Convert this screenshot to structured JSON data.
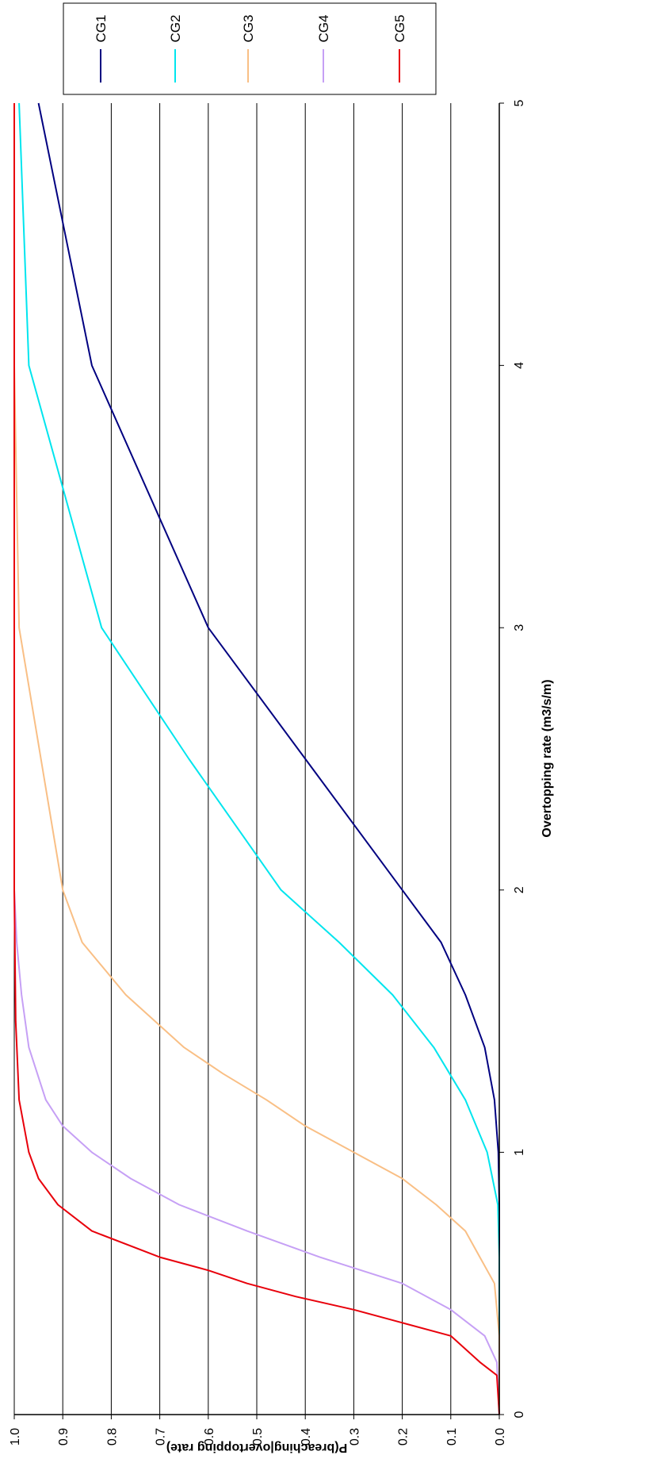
{
  "chart_data": {
    "type": "line",
    "orientation": "rotated 90 degrees clockwise (x axis runs top to bottom)",
    "title": "",
    "xlabel": "Overtopping rate (m3/s/m)",
    "ylabel": "P(breaching|overtopping rate)",
    "xlim": [
      0,
      5
    ],
    "ylim": [
      0,
      1
    ],
    "x_ticks": [
      "0",
      "1",
      "2",
      "3",
      "4",
      "5"
    ],
    "y_ticks": [
      "0.0",
      "0.1",
      "0.2",
      "0.3",
      "0.4",
      "0.5",
      "0.6",
      "0.7",
      "0.8",
      "0.9",
      "1.0"
    ],
    "grid": "horizontal gridlines at every 0.1",
    "legend_position": "top-right",
    "series": [
      {
        "name": "CG1",
        "color": "#000080",
        "points": [
          [
            0,
            0
          ],
          [
            0.8,
            0
          ],
          [
            1.0,
            0.002
          ],
          [
            1.2,
            0.01
          ],
          [
            1.4,
            0.03
          ],
          [
            1.6,
            0.07
          ],
          [
            1.8,
            0.12
          ],
          [
            2.0,
            0.2
          ],
          [
            2.5,
            0.4
          ],
          [
            3.0,
            0.6
          ],
          [
            4.0,
            0.84
          ],
          [
            5.0,
            0.95
          ]
        ]
      },
      {
        "name": "CG2",
        "color": "#00E5EE",
        "points": [
          [
            0,
            0
          ],
          [
            0.6,
            0
          ],
          [
            0.8,
            0.003
          ],
          [
            1.0,
            0.025
          ],
          [
            1.2,
            0.07
          ],
          [
            1.4,
            0.135
          ],
          [
            1.6,
            0.22
          ],
          [
            1.8,
            0.33
          ],
          [
            2.0,
            0.45
          ],
          [
            2.5,
            0.64
          ],
          [
            3.0,
            0.82
          ],
          [
            4.0,
            0.97
          ],
          [
            5.0,
            0.99
          ]
        ]
      },
      {
        "name": "CG3",
        "color": "#F9BF85",
        "points": [
          [
            0,
            0
          ],
          [
            0.3,
            0
          ],
          [
            0.5,
            0.01
          ],
          [
            0.6,
            0.04
          ],
          [
            0.7,
            0.07
          ],
          [
            0.8,
            0.13
          ],
          [
            0.9,
            0.2
          ],
          [
            1.0,
            0.3
          ],
          [
            1.1,
            0.4
          ],
          [
            1.2,
            0.48
          ],
          [
            1.3,
            0.57
          ],
          [
            1.4,
            0.65
          ],
          [
            1.6,
            0.77
          ],
          [
            1.8,
            0.86
          ],
          [
            2.0,
            0.9
          ],
          [
            3.0,
            0.99
          ],
          [
            4.0,
            1.0
          ],
          [
            5.0,
            1.0
          ]
        ]
      },
      {
        "name": "CG4",
        "color": "#C6A0F5",
        "points": [
          [
            0,
            0
          ],
          [
            0.2,
            0.005
          ],
          [
            0.3,
            0.03
          ],
          [
            0.4,
            0.1
          ],
          [
            0.5,
            0.2
          ],
          [
            0.6,
            0.37
          ],
          [
            0.7,
            0.52
          ],
          [
            0.8,
            0.66
          ],
          [
            0.9,
            0.76
          ],
          [
            1.0,
            0.84
          ],
          [
            1.1,
            0.9
          ],
          [
            1.2,
            0.935
          ],
          [
            1.4,
            0.97
          ],
          [
            1.6,
            0.985
          ],
          [
            1.8,
            0.995
          ],
          [
            2.0,
            1.0
          ],
          [
            5.0,
            1.0
          ]
        ]
      },
      {
        "name": "CG5",
        "color": "#E8000B",
        "points": [
          [
            0,
            0
          ],
          [
            0.15,
            0.005
          ],
          [
            0.2,
            0.04
          ],
          [
            0.3,
            0.1
          ],
          [
            0.35,
            0.2
          ],
          [
            0.4,
            0.3
          ],
          [
            0.45,
            0.42
          ],
          [
            0.5,
            0.52
          ],
          [
            0.55,
            0.6
          ],
          [
            0.6,
            0.7
          ],
          [
            0.7,
            0.84
          ],
          [
            0.8,
            0.91
          ],
          [
            0.9,
            0.95
          ],
          [
            1.0,
            0.97
          ],
          [
            1.2,
            0.99
          ],
          [
            1.5,
            0.997
          ],
          [
            2.0,
            1.0
          ],
          [
            5.0,
            1.0
          ]
        ]
      }
    ]
  }
}
